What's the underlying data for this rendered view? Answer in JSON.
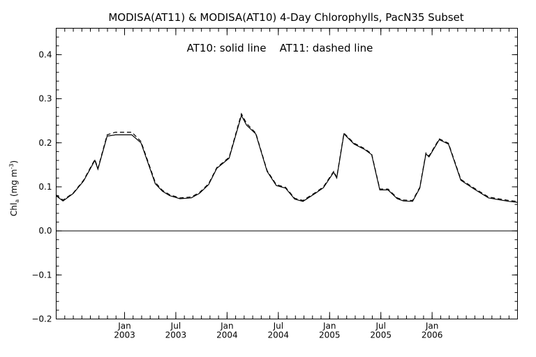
{
  "chart_data": {
    "type": "line",
    "title": "MODISA(AT11) & MODISA(AT10) 4-Day Chlorophylls, PacN35 Subset",
    "annotation": "AT10: solid line    AT11: dashed line",
    "ylabel": {
      "main": "Chl",
      "sub": "a",
      "units": " (mg m",
      "exp": "-3",
      "close": ")"
    },
    "ylim": [
      -0.2,
      0.46
    ],
    "xlim": [
      2002.333,
      2006.833
    ],
    "yticks": [
      -0.2,
      -0.1,
      0.0,
      0.1,
      0.2,
      0.3,
      0.4
    ],
    "ytick_labels": [
      "−0.2",
      "−0.1",
      "0.0",
      "0.1",
      "0.2",
      "0.3",
      "0.4"
    ],
    "xticks": [
      {
        "x": 2003.0,
        "month": "Jan",
        "year": "2003"
      },
      {
        "x": 2003.5,
        "month": "Jul",
        "year": "2003"
      },
      {
        "x": 2004.0,
        "month": "Jan",
        "year": "2004"
      },
      {
        "x": 2004.5,
        "month": "Jul",
        "year": "2004"
      },
      {
        "x": 2005.0,
        "month": "Jan",
        "year": "2005"
      },
      {
        "x": 2005.5,
        "month": "Jul",
        "year": "2005"
      },
      {
        "x": 2006.0,
        "month": "Jan",
        "year": "2006"
      }
    ],
    "zero_line": 0.0,
    "series": [
      {
        "style": "solid",
        "x": [
          2002.33,
          2002.4,
          2002.5,
          2002.6,
          2002.71,
          2002.74,
          2002.83,
          2002.91,
          2003.07,
          2003.16,
          2003.3,
          2003.37,
          2003.44,
          2003.54,
          2003.65,
          2003.73,
          2003.82,
          2003.9,
          2004.02,
          2004.14,
          2004.19,
          2004.28,
          2004.39,
          2004.48,
          2004.57,
          2004.66,
          2004.74,
          2004.86,
          2004.94,
          2005.04,
          2005.07,
          2005.14,
          2005.24,
          2005.34,
          2005.41,
          2005.49,
          2005.57,
          2005.66,
          2005.72,
          2005.81,
          2005.88,
          2005.94,
          2005.97,
          2006.07,
          2006.16,
          2006.28,
          2006.41,
          2006.55,
          2006.67,
          2006.75,
          2006.83
        ],
        "values": [
          0.08,
          0.068,
          0.085,
          0.113,
          0.16,
          0.14,
          0.215,
          0.218,
          0.218,
          0.2,
          0.107,
          0.09,
          0.08,
          0.073,
          0.075,
          0.085,
          0.105,
          0.142,
          0.165,
          0.262,
          0.24,
          0.22,
          0.135,
          0.103,
          0.097,
          0.072,
          0.067,
          0.085,
          0.098,
          0.133,
          0.12,
          0.22,
          0.197,
          0.185,
          0.173,
          0.093,
          0.093,
          0.073,
          0.068,
          0.067,
          0.097,
          0.175,
          0.168,
          0.207,
          0.197,
          0.115,
          0.095,
          0.075,
          0.07,
          0.067,
          0.065
        ]
      },
      {
        "style": "dashed",
        "x": [
          2002.33,
          2002.4,
          2002.5,
          2002.6,
          2002.71,
          2002.74,
          2002.83,
          2002.91,
          2003.07,
          2003.16,
          2003.3,
          2003.37,
          2003.44,
          2003.54,
          2003.65,
          2003.73,
          2003.82,
          2003.9,
          2004.02,
          2004.14,
          2004.19,
          2004.28,
          2004.39,
          2004.48,
          2004.57,
          2004.66,
          2004.74,
          2004.86,
          2004.94,
          2005.04,
          2005.07,
          2005.14,
          2005.24,
          2005.34,
          2005.41,
          2005.49,
          2005.57,
          2005.66,
          2005.72,
          2005.81,
          2005.88,
          2005.94,
          2005.97,
          2006.07,
          2006.16,
          2006.28,
          2006.41,
          2006.55,
          2006.67,
          2006.75,
          2006.83
        ],
        "values": [
          0.082,
          0.07,
          0.086,
          0.115,
          0.162,
          0.142,
          0.218,
          0.224,
          0.224,
          0.203,
          0.11,
          0.092,
          0.082,
          0.075,
          0.077,
          0.087,
          0.107,
          0.144,
          0.167,
          0.266,
          0.244,
          0.222,
          0.137,
          0.105,
          0.099,
          0.074,
          0.069,
          0.087,
          0.1,
          0.135,
          0.122,
          0.222,
          0.199,
          0.187,
          0.175,
          0.095,
          0.095,
          0.075,
          0.07,
          0.069,
          0.099,
          0.177,
          0.17,
          0.209,
          0.199,
          0.117,
          0.097,
          0.077,
          0.072,
          0.069,
          0.067
        ]
      }
    ]
  }
}
